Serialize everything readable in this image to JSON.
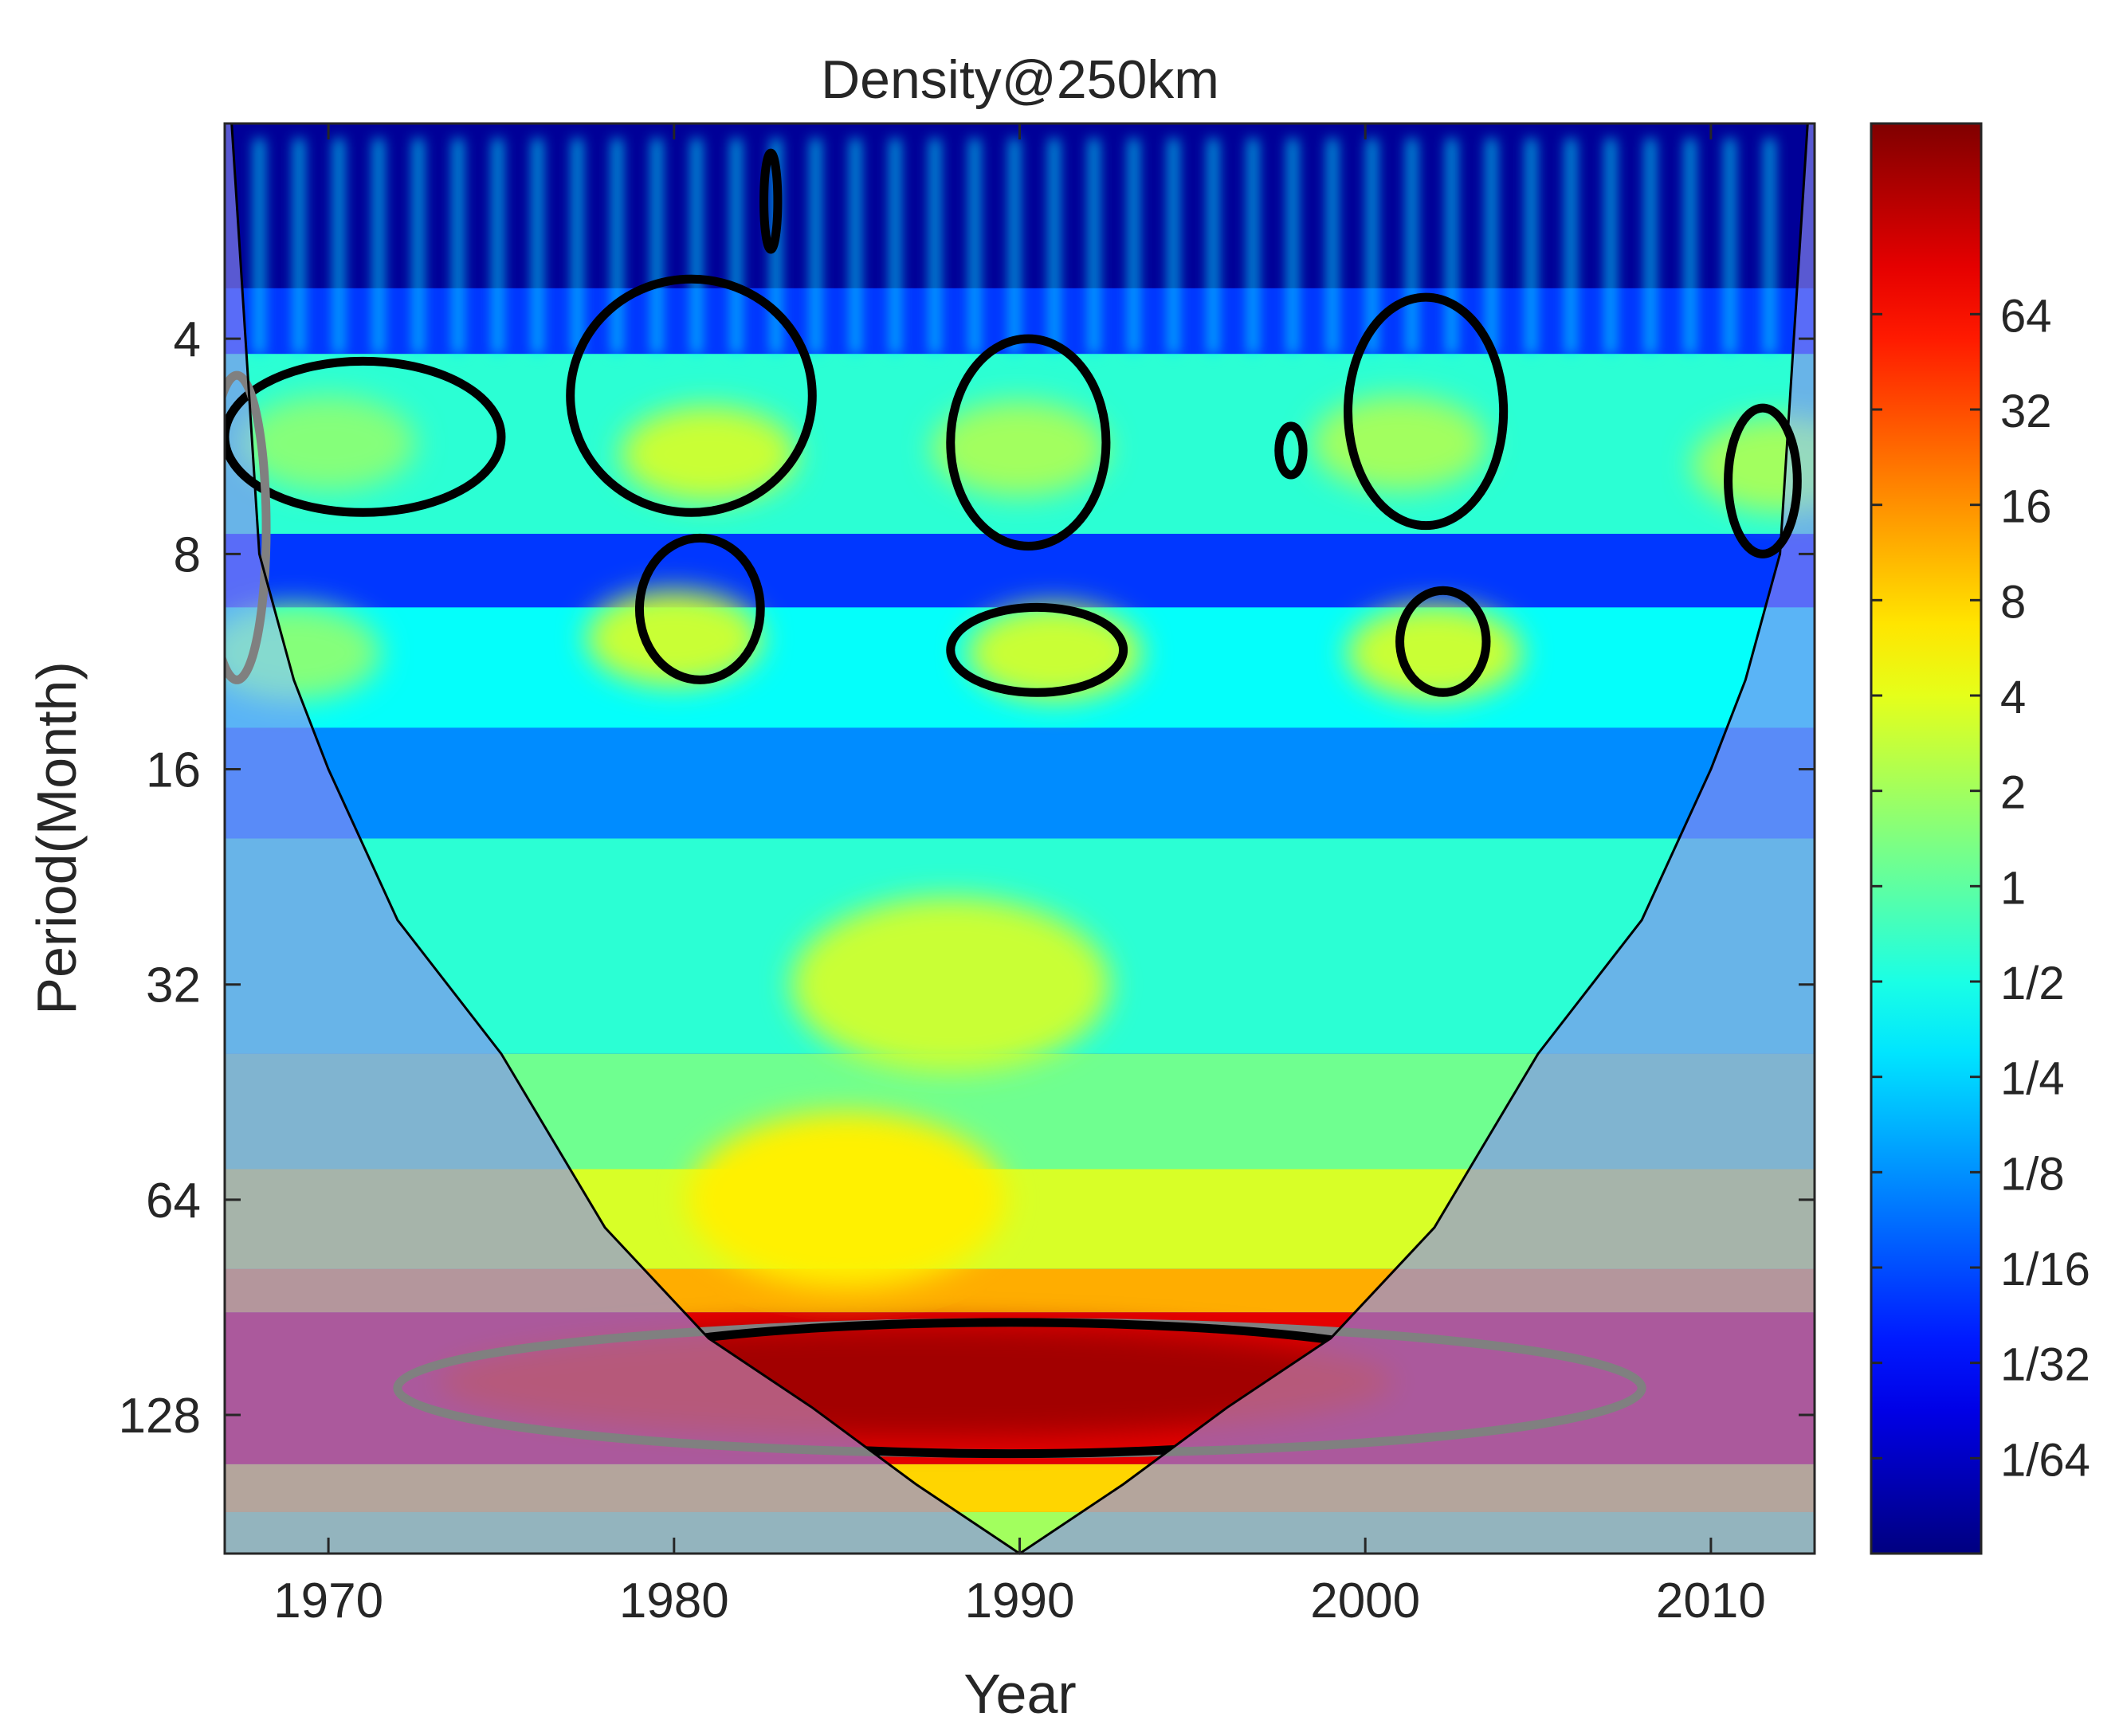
{
  "chart_data": {
    "type": "heatmap",
    "subtype": "wavelet power spectrum",
    "title": "Density@250km",
    "xlabel": "Year",
    "ylabel": "Period(Month)",
    "xlim": [
      1967,
      2013
    ],
    "ylim": [
      2,
      200
    ],
    "y_scale": "log2",
    "y_reversed": true,
    "x_ticks": [
      1970,
      1980,
      1990,
      2000,
      2010
    ],
    "y_ticks": [
      4,
      8,
      16,
      32,
      64,
      128
    ],
    "colorbar": {
      "scale": "log2",
      "range": [
        0.0078125,
        256
      ],
      "tick_labels": [
        "1/64",
        "1/32",
        "1/16",
        "1/8",
        "1/4",
        "1/2",
        "1",
        "2",
        "4",
        "8",
        "16",
        "32",
        "64"
      ],
      "tick_values": [
        0.015625,
        0.03125,
        0.0625,
        0.125,
        0.25,
        0.5,
        1,
        2,
        4,
        8,
        16,
        32,
        64
      ],
      "colormap": "jet"
    },
    "cone_of_influence": [
      [
        1967.2,
        2
      ],
      [
        1968,
        8
      ],
      [
        1969,
        12
      ],
      [
        1970,
        16
      ],
      [
        1972,
        26
      ],
      [
        1975,
        40
      ],
      [
        1978,
        70
      ],
      [
        1981,
        100
      ],
      [
        1984,
        125
      ],
      [
        1987,
        160
      ],
      [
        1990,
        200
      ],
      [
        1993,
        160
      ],
      [
        1996,
        125
      ],
      [
        1999,
        100
      ],
      [
        2002,
        70
      ],
      [
        2005,
        40
      ],
      [
        2008,
        26
      ],
      [
        2010,
        16
      ],
      [
        2011,
        12
      ],
      [
        2012,
        8
      ],
      [
        2012.8,
        2
      ]
    ],
    "power_peaks": [
      {
        "year": 1987,
        "period": 115,
        "level": 180
      },
      {
        "year": 1988,
        "period": 32,
        "level": 3
      },
      {
        "year": 1985,
        "period": 64,
        "level": 6
      },
      {
        "year": 1981,
        "period": 5.8,
        "level": 3
      },
      {
        "year": 1980,
        "period": 10.5,
        "level": 3
      },
      {
        "year": 1990,
        "period": 5.7,
        "level": 2
      },
      {
        "year": 1991,
        "period": 11,
        "level": 3
      },
      {
        "year": 2001,
        "period": 5.6,
        "level": 2
      },
      {
        "year": 2002,
        "period": 11,
        "level": 3
      },
      {
        "year": 2012,
        "period": 6,
        "level": 2
      },
      {
        "year": 1970,
        "period": 5.6,
        "level": 1.5
      },
      {
        "year": 1969,
        "period": 11,
        "level": 1.5
      }
    ],
    "significance_contours": [
      {
        "color": "black",
        "region": "1967-1975, period 4.2-7"
      },
      {
        "color": "black",
        "region": "1977-1984, period 3.3-7"
      },
      {
        "color": "black",
        "region": "1979-1982.5, period 7.5-12"
      },
      {
        "color": "black",
        "region": "1988-1992.5, period 4-7.8"
      },
      {
        "color": "black",
        "region": "1988-1993, period 9.5-12.5"
      },
      {
        "color": "black",
        "region": "1997.5-1998.2, period 5.3-6.2"
      },
      {
        "color": "black",
        "region": "1999.5-2004, period 3.5-7.3"
      },
      {
        "color": "black",
        "region": "2001-2003.5, period 9-12.5"
      },
      {
        "color": "black",
        "region": "2010.5-2012.5, period 5-8"
      },
      {
        "color": "black",
        "region": "1982.5-1983, period 2.2-3"
      },
      {
        "color": "black",
        "region": "1978-2000, period 95-145"
      },
      {
        "color": "gray",
        "region": "1972-2008, period 95-145"
      },
      {
        "color": "gray",
        "region": "1967-1968, period 4.5-12"
      }
    ]
  }
}
